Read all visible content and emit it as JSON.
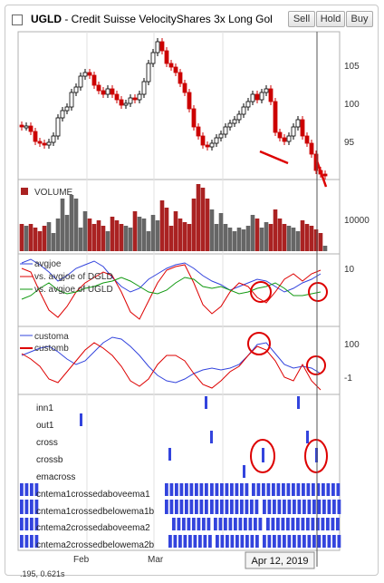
{
  "header": {
    "symbol": "UGLD",
    "title_rest": " - Credit Suisse VelocityShares 3x Long Gol",
    "buttons": {
      "sell": "Sell",
      "hold": "Hold",
      "buy": "Buy"
    }
  },
  "price_panel": {
    "y_labels": [
      "105",
      "100",
      "95"
    ]
  },
  "volume_panel": {
    "label": "VOLUME",
    "y_label": "10000"
  },
  "avgjoe_panel": {
    "legend": [
      "avgjoe",
      "vs. avgjoe of DGLD",
      "vs. avgjoe of UGLD"
    ],
    "y_label": "10"
  },
  "custom_panel": {
    "legend": [
      "customa",
      "customb"
    ],
    "y_labels": [
      "100",
      "-1"
    ]
  },
  "signals": {
    "rows": [
      "inn1",
      "out1",
      "cross",
      "crossb",
      "emacross",
      "cntema1crossedaboveema1",
      "cntema1crossedbelowema1b",
      "cntema2crossedaboveema2",
      "cntema2crossedbelowema2b"
    ]
  },
  "x_axis": {
    "labels": [
      "Feb",
      "Mar"
    ],
    "cursor_date": "Apr 12, 2019"
  },
  "footer": {
    "coords": ".195, 0.621s"
  },
  "colors": {
    "up": "#000000",
    "down": "#cc0000",
    "volume_up": "#666666",
    "volume_down": "#aa2222",
    "signal": "#3344dd",
    "line_blue": "#3344dd",
    "line_red": "#dd0000",
    "line_green": "#119911",
    "annotation": "#dd0000"
  }
}
